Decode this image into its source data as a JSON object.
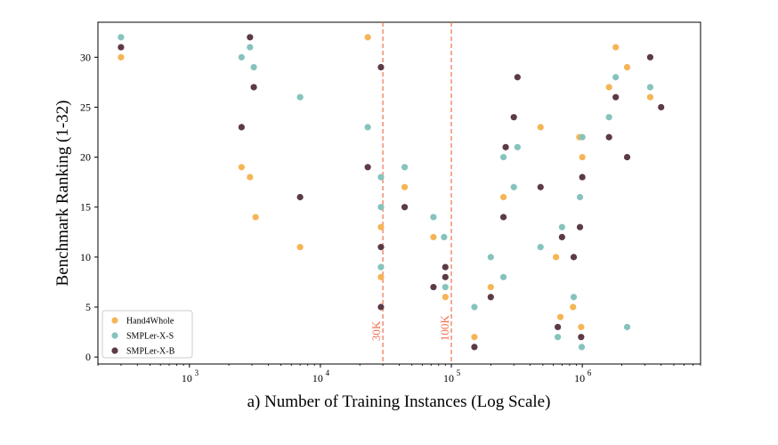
{
  "chart_data": {
    "type": "scatter",
    "xlabel": "a) Number of Training Instances (Log Scale)",
    "ylabel": "Benchmark Ranking (1-32)",
    "xscale": "log",
    "xlim": [
      200,
      8000000
    ],
    "ylim": [
      -0.7,
      33.5
    ],
    "yticks": [
      0,
      5,
      10,
      15,
      20,
      25,
      30
    ],
    "xticks": [
      1000,
      10000,
      100000,
      1000000
    ],
    "xtick_labels": [
      "10",
      "10",
      "10",
      "10"
    ],
    "xtick_exponents": [
      "3",
      "4",
      "5",
      "6"
    ],
    "grid": false,
    "legend_position": "lower-left",
    "vlines": [
      {
        "x": 30000,
        "label": "30K",
        "color": "#f07050"
      },
      {
        "x": 100000,
        "label": "100K",
        "color": "#f07050"
      }
    ],
    "series": [
      {
        "name": "Hand4Whole",
        "color": "#f5b556",
        "points": [
          [
            300,
            30
          ],
          [
            2500,
            19
          ],
          [
            2900,
            18
          ],
          [
            3200,
            14
          ],
          [
            7000,
            11
          ],
          [
            23000,
            32
          ],
          [
            29000,
            13
          ],
          [
            29000,
            8
          ],
          [
            44000,
            17
          ],
          [
            73000,
            12
          ],
          [
            90000,
            6
          ],
          [
            150000,
            2
          ],
          [
            200000,
            7
          ],
          [
            250000,
            16
          ],
          [
            480000,
            23
          ],
          [
            630000,
            10
          ],
          [
            680000,
            4
          ],
          [
            850000,
            5
          ],
          [
            950000,
            22
          ],
          [
            1000000,
            20
          ],
          [
            980000,
            3
          ],
          [
            1800000,
            31
          ],
          [
            1600000,
            27
          ],
          [
            2200000,
            29
          ],
          [
            3300000,
            26
          ]
        ]
      },
      {
        "name": "SMPLer-X-S",
        "color": "#86c3bd",
        "points": [
          [
            300,
            32
          ],
          [
            2500,
            30
          ],
          [
            2900,
            31
          ],
          [
            3100,
            29
          ],
          [
            7000,
            26
          ],
          [
            23000,
            23
          ],
          [
            29000,
            18
          ],
          [
            29000,
            15
          ],
          [
            29000,
            9
          ],
          [
            44000,
            19
          ],
          [
            73000,
            14
          ],
          [
            88000,
            12
          ],
          [
            90000,
            7
          ],
          [
            150000,
            5
          ],
          [
            200000,
            10
          ],
          [
            250000,
            20
          ],
          [
            250000,
            8
          ],
          [
            300000,
            17
          ],
          [
            320000,
            21
          ],
          [
            480000,
            11
          ],
          [
            650000,
            2
          ],
          [
            700000,
            13
          ],
          [
            860000,
            6
          ],
          [
            960000,
            16
          ],
          [
            990000,
            1
          ],
          [
            1000000,
            22
          ],
          [
            1600000,
            24
          ],
          [
            1800000,
            28
          ],
          [
            2200000,
            3
          ],
          [
            3300000,
            27
          ]
        ]
      },
      {
        "name": "SMPLer-X-B",
        "color": "#5c3a48",
        "points": [
          [
            300,
            31
          ],
          [
            2500,
            23
          ],
          [
            2900,
            32
          ],
          [
            3100,
            27
          ],
          [
            7000,
            16
          ],
          [
            23000,
            19
          ],
          [
            29000,
            29
          ],
          [
            29000,
            11
          ],
          [
            29000,
            5
          ],
          [
            44000,
            15
          ],
          [
            73000,
            7
          ],
          [
            90000,
            9
          ],
          [
            90000,
            8
          ],
          [
            150000,
            1
          ],
          [
            200000,
            6
          ],
          [
            250000,
            14
          ],
          [
            260000,
            21
          ],
          [
            300000,
            24
          ],
          [
            320000,
            28
          ],
          [
            480000,
            17
          ],
          [
            650000,
            3
          ],
          [
            700000,
            12
          ],
          [
            860000,
            10
          ],
          [
            960000,
            13
          ],
          [
            980000,
            2
          ],
          [
            1000000,
            18
          ],
          [
            1600000,
            22
          ],
          [
            1800000,
            26
          ],
          [
            2200000,
            20
          ],
          [
            3300000,
            30
          ],
          [
            4000000,
            25
          ]
        ]
      }
    ]
  }
}
